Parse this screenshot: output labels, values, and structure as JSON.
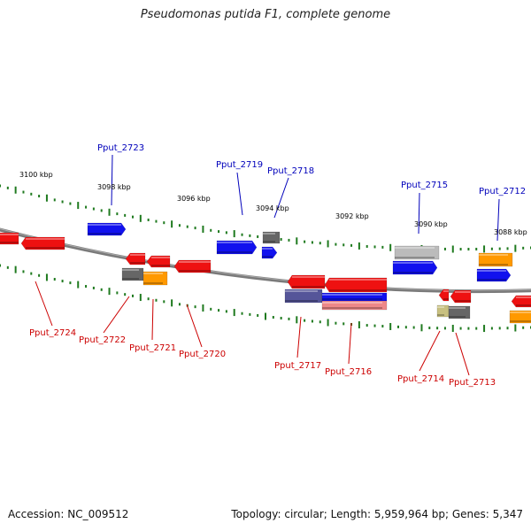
{
  "header": {
    "title": "Pseudomonas putida F1, complete genome"
  },
  "footer": {
    "accession": "Accession: NC_009512",
    "summary": "Topology: circular; Length: 5,959,964 bp; Genes: 5,347"
  },
  "colors": {
    "backbone": "#7a7a7a",
    "ticks": "#1f7a1f",
    "forward_label": "#0000bb",
    "reverse_label": "#cc0000",
    "gene_red": "#ee1111",
    "gene_blue": "#1111ee",
    "gene_gray": "#666666",
    "gene_orange": "#ff9900",
    "gene_lightgray": "#bbbbbb",
    "gene_purple": "#555599",
    "gene_pink": "#ee8888",
    "gene_khaki": "#c8c080"
  },
  "ruler": [
    {
      "label": "3100 kbp"
    },
    {
      "label": "3098 kbp"
    },
    {
      "label": "3096 kbp"
    },
    {
      "label": "3094 kbp"
    },
    {
      "label": "3092 kbp"
    },
    {
      "label": "3090 kbp"
    },
    {
      "label": "3088 kbp"
    }
  ],
  "forward_labels": [
    {
      "text": "Pput_2723"
    },
    {
      "text": "Pput_2719"
    },
    {
      "text": "Pput_2718"
    },
    {
      "text": "Pput_2715"
    },
    {
      "text": "Pput_2712"
    }
  ],
  "reverse_labels": [
    {
      "text": "Pput_2724"
    },
    {
      "text": "Pput_2722"
    },
    {
      "text": "Pput_2721"
    },
    {
      "text": "Pput_2720"
    },
    {
      "text": "Pput_2717"
    },
    {
      "text": "Pput_2716"
    },
    {
      "text": "Pput_2714"
    },
    {
      "text": "Pput_2713"
    }
  ]
}
